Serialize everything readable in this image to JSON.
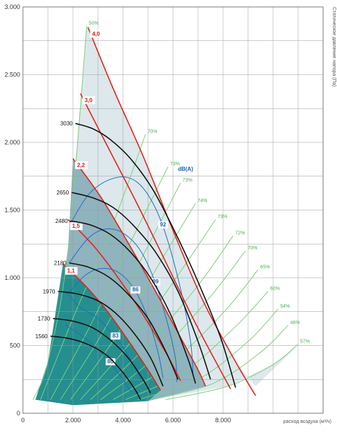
{
  "colors": {
    "speed_line": "#111111",
    "power_line": "#e0241b",
    "noise_line": "#1f6fbf",
    "efficiency_line": "#7dcf7d",
    "region_light": "#dde8ec",
    "region_mid": "#8fb3bf",
    "region_dark": "#1a8a8a",
    "grid": "#9a9a9a"
  },
  "chart_data": {
    "type": "line",
    "xlabel": "расход воздуха (м³/ч)",
    "ylabel": "Статическое давление напора (Па)",
    "xlim": [
      0,
      12000
    ],
    "ylim": [
      0,
      3000
    ],
    "x_ticks": [
      {
        "value": 0,
        "label": "0"
      },
      {
        "value": 2000,
        "label": "2.000"
      },
      {
        "value": 4000,
        "label": "4.000"
      },
      {
        "value": 6000,
        "label": "6.000"
      },
      {
        "value": 8000,
        "label": "8.000"
      }
    ],
    "y_ticks": [
      {
        "value": 0,
        "label": "0"
      },
      {
        "value": 500,
        "label": "500"
      },
      {
        "value": 1000,
        "label": "1.000"
      },
      {
        "value": 1500,
        "label": "1.500"
      },
      {
        "value": 2000,
        "label": "2.000"
      },
      {
        "value": 2500,
        "label": "2.500"
      },
      {
        "value": 3000,
        "label": "3.000"
      }
    ],
    "grid": true,
    "speed_curves": [
      {
        "label": "3030",
        "points": [
          [
            2100,
            2140
          ],
          [
            2800,
            2100
          ],
          [
            3500,
            2020
          ],
          [
            4300,
            1880
          ],
          [
            5200,
            1650
          ],
          [
            6100,
            1330
          ],
          [
            7000,
            970
          ],
          [
            7900,
            560
          ],
          [
            8500,
            190
          ]
        ]
      },
      {
        "label": "2650",
        "points": [
          [
            1950,
            1630
          ],
          [
            2800,
            1590
          ],
          [
            3600,
            1520
          ],
          [
            4400,
            1390
          ],
          [
            5300,
            1190
          ],
          [
            6200,
            900
          ],
          [
            7000,
            530
          ],
          [
            7500,
            250
          ]
        ]
      },
      {
        "label": "2480",
        "points": [
          [
            1900,
            1420
          ],
          [
            2700,
            1390
          ],
          [
            3500,
            1320
          ],
          [
            4300,
            1190
          ],
          [
            5100,
            1000
          ],
          [
            5900,
            730
          ],
          [
            6600,
            400
          ],
          [
            6900,
            220
          ]
        ]
      },
      {
        "label": "2180",
        "points": [
          [
            1850,
            1110
          ],
          [
            2600,
            1080
          ],
          [
            3400,
            1010
          ],
          [
            4200,
            880
          ],
          [
            5000,
            700
          ],
          [
            5700,
            460
          ],
          [
            6200,
            250
          ]
        ]
      },
      {
        "label": "1970",
        "points": [
          [
            1400,
            900
          ],
          [
            2200,
            880
          ],
          [
            3000,
            830
          ],
          [
            3700,
            740
          ],
          [
            4400,
            600
          ],
          [
            5100,
            410
          ],
          [
            5600,
            200
          ]
        ]
      },
      {
        "label": "1730",
        "points": [
          [
            1200,
            700
          ],
          [
            2000,
            680
          ],
          [
            2800,
            630
          ],
          [
            3500,
            540
          ],
          [
            4200,
            410
          ],
          [
            4800,
            250
          ],
          [
            5100,
            150
          ]
        ]
      },
      {
        "label": "1560",
        "points": [
          [
            1100,
            570
          ],
          [
            1900,
            550
          ],
          [
            2700,
            500
          ],
          [
            3400,
            420
          ],
          [
            4000,
            300
          ],
          [
            4500,
            170
          ],
          [
            4700,
            100
          ]
        ]
      }
    ],
    "power_curves": [
      {
        "label": "4,0",
        "points": [
          [
            2600,
            2850
          ],
          [
            3600,
            2400
          ],
          [
            4800,
            1900
          ],
          [
            6000,
            1350
          ],
          [
            7200,
            830
          ],
          [
            8500,
            380
          ],
          [
            9300,
            130
          ]
        ]
      },
      {
        "label": "3,0",
        "points": [
          [
            2300,
            2360
          ],
          [
            3300,
            2000
          ],
          [
            4500,
            1570
          ],
          [
            5700,
            1120
          ],
          [
            6800,
            700
          ],
          [
            7800,
            350
          ],
          [
            8300,
            180
          ]
        ]
      },
      {
        "label": "2,2",
        "points": [
          [
            2000,
            1880
          ],
          [
            3100,
            1600
          ],
          [
            4200,
            1260
          ],
          [
            5300,
            900
          ],
          [
            6300,
            560
          ],
          [
            7000,
            320
          ],
          [
            7300,
            200
          ]
        ]
      },
      {
        "label": "1,5",
        "points": [
          [
            1800,
            1430
          ],
          [
            2900,
            1220
          ],
          [
            4000,
            950
          ],
          [
            5000,
            670
          ],
          [
            5800,
            420
          ],
          [
            6300,
            240
          ]
        ]
      },
      {
        "label": "1,1",
        "points": [
          [
            1600,
            1100
          ],
          [
            2400,
            960
          ],
          [
            3300,
            770
          ],
          [
            4200,
            540
          ],
          [
            5000,
            320
          ],
          [
            5500,
            170
          ]
        ]
      }
    ],
    "noise_curves": [
      {
        "label": "92",
        "points": [
          [
            1900,
            1400
          ],
          [
            2600,
            1610
          ],
          [
            3400,
            1720
          ],
          [
            4200,
            1740
          ],
          [
            4900,
            1640
          ],
          [
            5600,
            1380
          ],
          [
            6300,
            920
          ],
          [
            6700,
            530
          ],
          [
            6800,
            290
          ]
        ]
      },
      {
        "label": "89",
        "points": [
          [
            1850,
            1110
          ],
          [
            2600,
            1290
          ],
          [
            3300,
            1360
          ],
          [
            4000,
            1330
          ],
          [
            4700,
            1200
          ],
          [
            5300,
            960
          ],
          [
            5800,
            650
          ],
          [
            6100,
            400
          ],
          [
            6150,
            230
          ]
        ]
      },
      {
        "label": "86",
        "points": [
          [
            1800,
            880
          ],
          [
            2500,
            1020
          ],
          [
            3200,
            1070
          ],
          [
            3900,
            1030
          ],
          [
            4500,
            900
          ],
          [
            5000,
            700
          ],
          [
            5400,
            450
          ],
          [
            5600,
            260
          ]
        ]
      },
      {
        "label": "83",
        "points": [
          [
            1800,
            880
          ],
          [
            2300,
            780
          ],
          [
            3000,
            700
          ],
          [
            3700,
            560
          ],
          [
            4300,
            400
          ],
          [
            4700,
            250
          ]
        ]
      },
      {
        "label": "80",
        "points": [
          [
            1700,
            650
          ],
          [
            2300,
            580
          ],
          [
            2900,
            490
          ],
          [
            3500,
            370
          ],
          [
            4000,
            250
          ],
          [
            4300,
            160
          ]
        ]
      }
    ],
    "efficiency_curves": [
      {
        "label": "50%",
        "points": [
          [
            2550,
            2860
          ],
          [
            1800,
            1200
          ],
          [
            1000,
            380
          ],
          [
            400,
            100
          ]
        ]
      },
      {
        "label": "70%",
        "points": [
          [
            4900,
            2060
          ],
          [
            3600,
            1400
          ],
          [
            2000,
            700
          ],
          [
            700,
            100
          ]
        ]
      },
      {
        "label": "73%",
        "points": [
          [
            5800,
            1820
          ],
          [
            4400,
            1300
          ],
          [
            2700,
            650
          ],
          [
            1100,
            100
          ]
        ]
      },
      {
        "label": "73%",
        "points": [
          [
            6300,
            1700
          ],
          [
            4900,
            1200
          ],
          [
            3200,
            600
          ],
          [
            1500,
            100
          ]
        ]
      },
      {
        "label": "74%",
        "points": [
          [
            6900,
            1550
          ],
          [
            5500,
            1120
          ],
          [
            3700,
            560
          ],
          [
            1900,
            100
          ]
        ]
      },
      {
        "label": "73%",
        "points": [
          [
            7700,
            1430
          ],
          [
            6200,
            1020
          ],
          [
            4200,
            500
          ],
          [
            2300,
            100
          ]
        ]
      },
      {
        "label": "72%",
        "points": [
          [
            8400,
            1310
          ],
          [
            6900,
            920
          ],
          [
            4700,
            450
          ],
          [
            2700,
            100
          ]
        ]
      },
      {
        "label": "70%",
        "points": [
          [
            8900,
            1200
          ],
          [
            7400,
            840
          ],
          [
            5200,
            400
          ],
          [
            3100,
            100
          ]
        ]
      },
      {
        "label": "65%",
        "points": [
          [
            9400,
            1060
          ],
          [
            8000,
            740
          ],
          [
            5800,
            350
          ],
          [
            3600,
            100
          ]
        ]
      },
      {
        "label": "60%",
        "points": [
          [
            9800,
            900
          ],
          [
            8500,
            640
          ],
          [
            6400,
            300
          ],
          [
            4100,
            100
          ]
        ]
      },
      {
        "label": "54%",
        "points": [
          [
            10200,
            770
          ],
          [
            9000,
            530
          ],
          [
            7000,
            250
          ],
          [
            4600,
            100
          ]
        ]
      },
      {
        "label": "46%",
        "points": [
          [
            10600,
            650
          ],
          [
            9500,
            450
          ],
          [
            7600,
            220
          ],
          [
            5100,
            100
          ]
        ]
      },
      {
        "label": "57%",
        "points": [
          [
            11000,
            510
          ],
          [
            10000,
            360
          ],
          [
            8200,
            200
          ],
          [
            5700,
            100
          ]
        ]
      }
    ]
  },
  "labels": {
    "x_axis": "расход воздуха (м³/ч)",
    "y_axis": "Статическое давление напора (Па)",
    "noise_unit": "dB(A)"
  }
}
